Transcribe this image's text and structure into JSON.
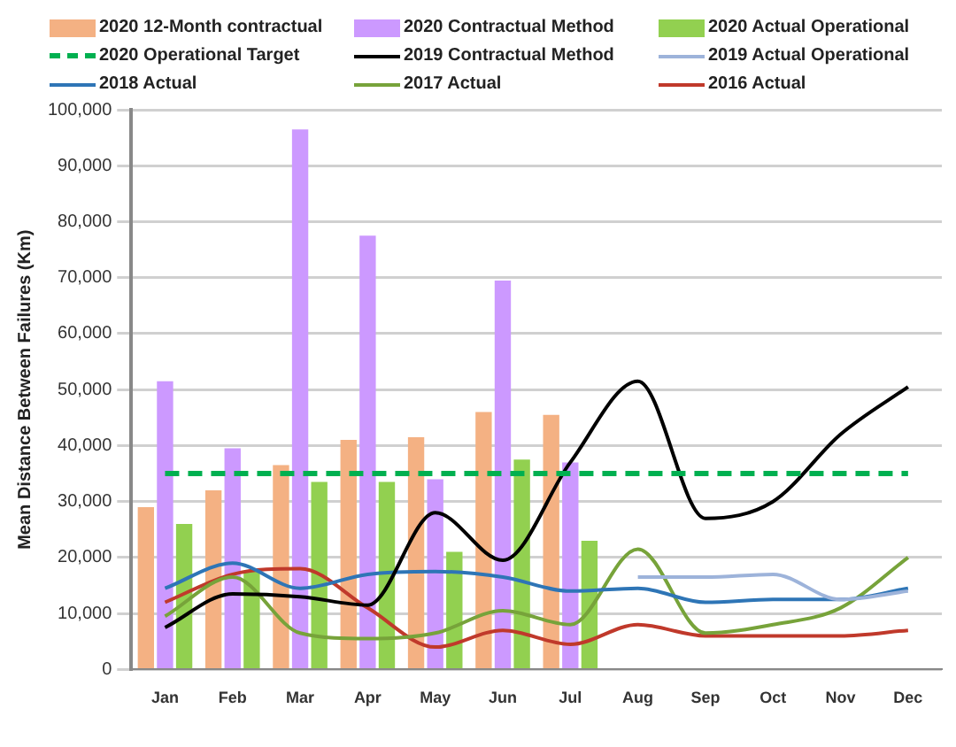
{
  "chart_data": {
    "type": "bar",
    "ylabel": "Mean Distance Between Failures (Km)",
    "categories": [
      "Jan",
      "Feb",
      "Mar",
      "Apr",
      "May",
      "Jun",
      "Jul",
      "Aug",
      "Sep",
      "Oct",
      "Nov",
      "Dec"
    ],
    "series": [
      {
        "name": "2020 12-Month contractual",
        "color": "#f4b183",
        "values": [
          29000,
          32000,
          36500,
          41000,
          41500,
          46000,
          45500,
          null,
          null,
          null,
          null,
          null
        ]
      },
      {
        "name": "2020 Contractual Method",
        "color": "#cc99ff",
        "values": [
          51500,
          39500,
          96500,
          77500,
          34000,
          69500,
          37000,
          null,
          null,
          null,
          null,
          null
        ]
      },
      {
        "name": "2020 Actual Operational",
        "color": "#92d050",
        "values": [
          26000,
          17500,
          33500,
          33500,
          21000,
          37500,
          23000,
          null,
          null,
          null,
          null,
          null
        ]
      },
      {
        "name": "2020 Operational Target",
        "type": "line",
        "line_style": "dashed",
        "color": "#00b050",
        "values": [
          35000,
          35000,
          35000,
          35000,
          35000,
          35000,
          35000,
          35000,
          35000,
          35000,
          35000,
          35000
        ]
      },
      {
        "name": "2019 Contractual Method",
        "type": "line",
        "color": "#000000",
        "values": [
          7500,
          13500,
          13000,
          11500,
          28000,
          19500,
          37000,
          51500,
          27000,
          30000,
          42000,
          50500
        ]
      },
      {
        "name": "2019 Actual Operational",
        "type": "line",
        "color": "#9db3da",
        "values": [
          null,
          null,
          null,
          null,
          null,
          null,
          null,
          16500,
          16500,
          17000,
          12500,
          14000
        ]
      },
      {
        "name": "2018 Actual",
        "type": "line",
        "color": "#2e75b6",
        "values": [
          14500,
          19000,
          14500,
          17000,
          17500,
          16500,
          14000,
          14500,
          12000,
          12500,
          12500,
          14500
        ]
      },
      {
        "name": "2017 Actual",
        "type": "line",
        "color": "#77a33a",
        "values": [
          9500,
          16500,
          6500,
          5500,
          6500,
          10500,
          8000,
          21500,
          6500,
          8000,
          11000,
          20000
        ]
      },
      {
        "name": "2016 Actual",
        "type": "line",
        "color": "#c0392b",
        "values": [
          12000,
          17000,
          18000,
          11000,
          4000,
          7000,
          4500,
          8000,
          6000,
          6000,
          6000,
          7000
        ]
      }
    ],
    "ylim": [
      0,
      100000
    ],
    "yticks": [
      {
        "value": 0,
        "label": "0"
      },
      {
        "value": 10000,
        "label": "10,000"
      },
      {
        "value": 20000,
        "label": "20,000"
      },
      {
        "value": 30000,
        "label": "30,000"
      },
      {
        "value": 40000,
        "label": "40,000"
      },
      {
        "value": 50000,
        "label": "50,000"
      },
      {
        "value": 60000,
        "label": "60,000"
      },
      {
        "value": 70000,
        "label": "70,000"
      },
      {
        "value": 80000,
        "label": "80,000"
      },
      {
        "value": 90000,
        "label": "90,000"
      },
      {
        "value": 100000,
        "label": "100,000"
      }
    ],
    "grid": "y",
    "legend": "top",
    "marker": "none"
  }
}
